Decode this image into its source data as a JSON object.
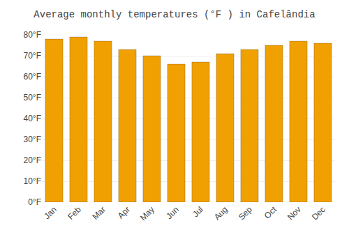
{
  "chart_data": {
    "type": "bar",
    "title": "Average monthly temperatures (°F ) in Cafelândia",
    "categories": [
      "Jan",
      "Feb",
      "Mar",
      "Apr",
      "May",
      "Jun",
      "Jul",
      "Aug",
      "Sep",
      "Oct",
      "Nov",
      "Dec"
    ],
    "values": [
      78,
      79,
      77,
      73,
      70,
      66,
      67,
      71,
      73,
      75,
      77,
      76
    ],
    "color": "#F0A000",
    "ylim": [
      0,
      80
    ],
    "yticks": [
      {
        "value": 0,
        "label": "0°F"
      },
      {
        "value": 10,
        "label": "10°F"
      },
      {
        "value": 20,
        "label": "20°F"
      },
      {
        "value": 30,
        "label": "30°F"
      },
      {
        "value": 40,
        "label": "40°F"
      },
      {
        "value": 50,
        "label": "50°F"
      },
      {
        "value": 60,
        "label": "60°F"
      },
      {
        "value": 70,
        "label": "70°F"
      },
      {
        "value": 80,
        "label": "80°F"
      }
    ],
    "grid": true
  }
}
